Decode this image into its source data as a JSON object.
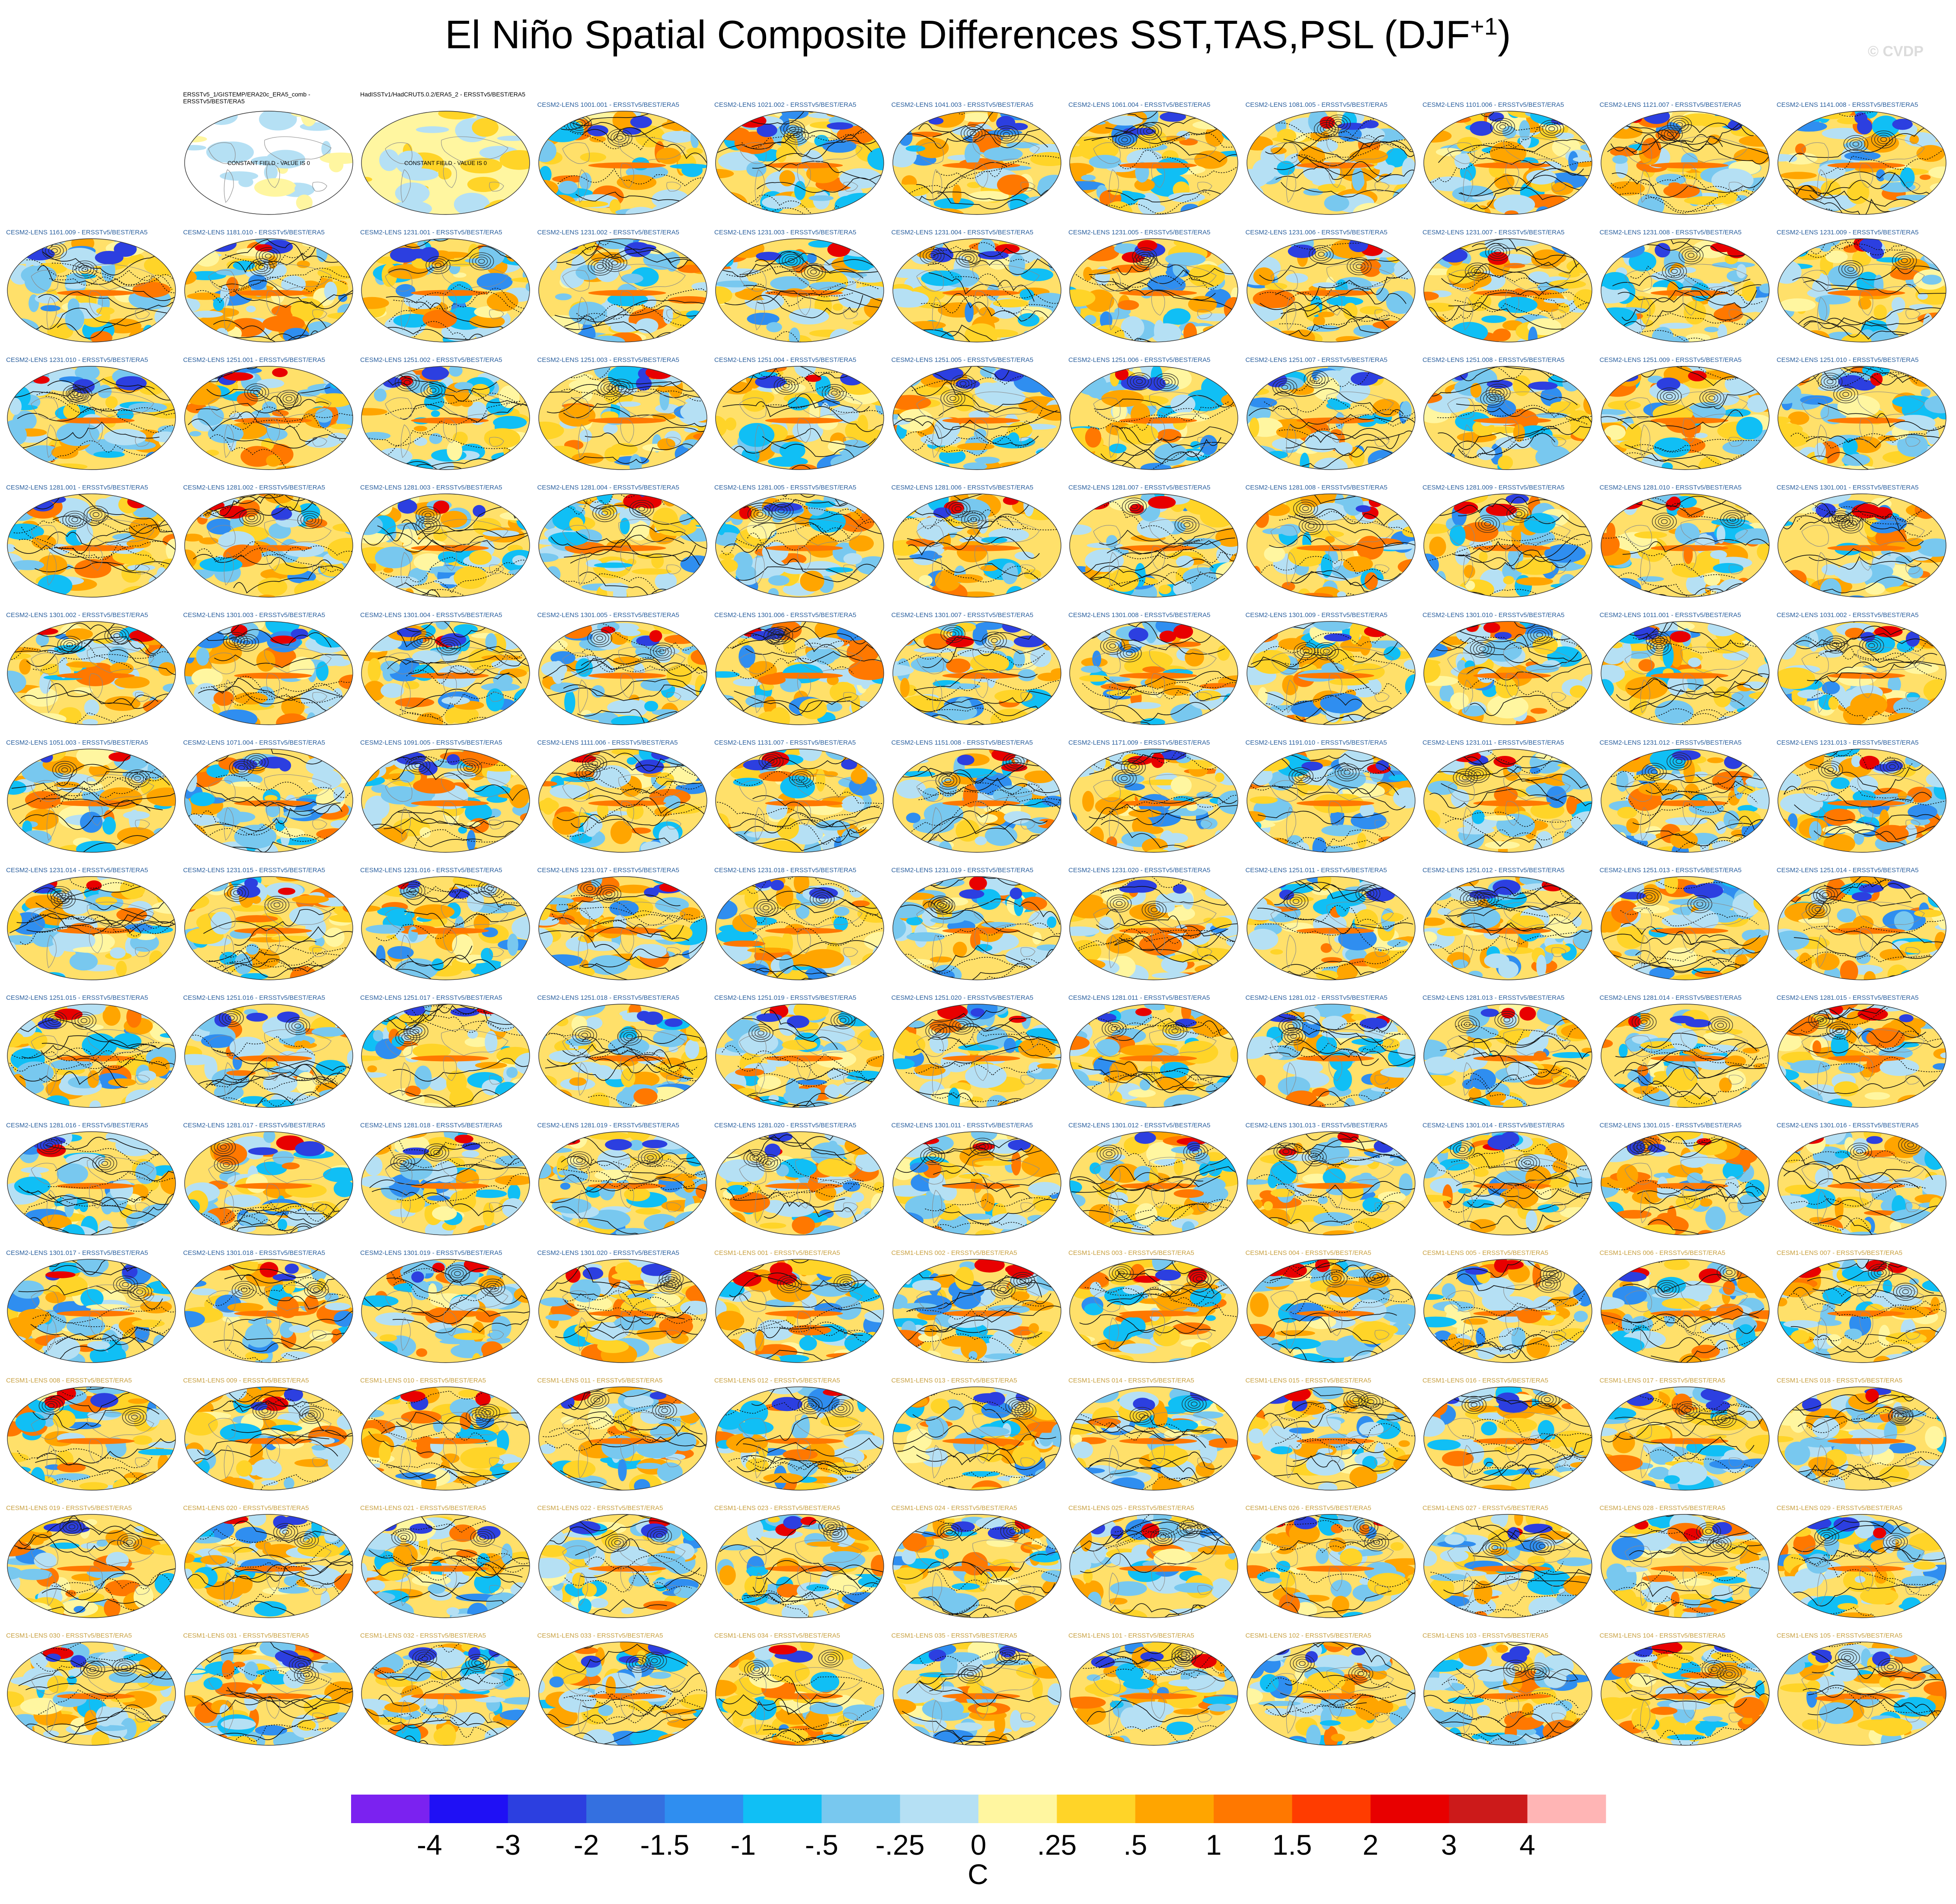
{
  "title": "El Niño Spatial Composite Differences SST,TAS,PSL (DJF",
  "title_sup": "+1",
  "title_close": ")",
  "watermark": "© CVDP",
  "panel_rows": [
    [
      "",
      "ERSSTv5_1/GISTEMP/ERA20c_ERA5_comb - ERSSTv5/BEST/ERA5",
      "HadISSTv1/HadCRUT5.0.2/ERA5_2 - ERSSTv5/BEST/ERA5",
      "CESM2-LENS 1001.001 - ERSSTv5/BEST/ERA5",
      "CESM2-LENS 1021.002 - ERSSTv5/BEST/ERA5",
      "CESM2-LENS 1041.003 - ERSSTv5/BEST/ERA5",
      "CESM2-LENS 1061.004 - ERSSTv5/BEST/ERA5",
      "CESM2-LENS 1081.005 - ERSSTv5/BEST/ERA5",
      "CESM2-LENS 1101.006 - ERSSTv5/BEST/ERA5",
      "CESM2-LENS 1121.007 - ERSSTv5/BEST/ERA5",
      "CESM2-LENS 1141.008 - ERSSTv5/BEST/ERA5"
    ],
    [
      "CESM2-LENS 1161.009 - ERSSTv5/BEST/ERA5",
      "CESM2-LENS 1181.010 - ERSSTv5/BEST/ERA5",
      "CESM2-LENS 1231.001 - ERSSTv5/BEST/ERA5",
      "CESM2-LENS 1231.002 - ERSSTv5/BEST/ERA5",
      "CESM2-LENS 1231.003 - ERSSTv5/BEST/ERA5",
      "CESM2-LENS 1231.004 - ERSSTv5/BEST/ERA5",
      "CESM2-LENS 1231.005 - ERSSTv5/BEST/ERA5",
      "CESM2-LENS 1231.006 - ERSSTv5/BEST/ERA5",
      "CESM2-LENS 1231.007 - ERSSTv5/BEST/ERA5",
      "CESM2-LENS 1231.008 - ERSSTv5/BEST/ERA5",
      "CESM2-LENS 1231.009 - ERSSTv5/BEST/ERA5"
    ],
    [
      "CESM2-LENS 1231.010 - ERSSTv5/BEST/ERA5",
      "CESM2-LENS 1251.001 - ERSSTv5/BEST/ERA5",
      "CESM2-LENS 1251.002 - ERSSTv5/BEST/ERA5",
      "CESM2-LENS 1251.003 - ERSSTv5/BEST/ERA5",
      "CESM2-LENS 1251.004 - ERSSTv5/BEST/ERA5",
      "CESM2-LENS 1251.005 - ERSSTv5/BEST/ERA5",
      "CESM2-LENS 1251.006 - ERSSTv5/BEST/ERA5",
      "CESM2-LENS 1251.007 - ERSSTv5/BEST/ERA5",
      "CESM2-LENS 1251.008 - ERSSTv5/BEST/ERA5",
      "CESM2-LENS 1251.009 - ERSSTv5/BEST/ERA5",
      "CESM2-LENS 1251.010 - ERSSTv5/BEST/ERA5"
    ],
    [
      "CESM2-LENS 1281.001 - ERSSTv5/BEST/ERA5",
      "CESM2-LENS 1281.002 - ERSSTv5/BEST/ERA5",
      "CESM2-LENS 1281.003 - ERSSTv5/BEST/ERA5",
      "CESM2-LENS 1281.004 - ERSSTv5/BEST/ERA5",
      "CESM2-LENS 1281.005 - ERSSTv5/BEST/ERA5",
      "CESM2-LENS 1281.006 - ERSSTv5/BEST/ERA5",
      "CESM2-LENS 1281.007 - ERSSTv5/BEST/ERA5",
      "CESM2-LENS 1281.008 - ERSSTv5/BEST/ERA5",
      "CESM2-LENS 1281.009 - ERSSTv5/BEST/ERA5",
      "CESM2-LENS 1281.010 - ERSSTv5/BEST/ERA5",
      "CESM2-LENS 1301.001 - ERSSTv5/BEST/ERA5"
    ],
    [
      "CESM2-LENS 1301.002 - ERSSTv5/BEST/ERA5",
      "CESM2-LENS 1301.003 - ERSSTv5/BEST/ERA5",
      "CESM2-LENS 1301.004 - ERSSTv5/BEST/ERA5",
      "CESM2-LENS 1301.005 - ERSSTv5/BEST/ERA5",
      "CESM2-LENS 1301.006 - ERSSTv5/BEST/ERA5",
      "CESM2-LENS 1301.007 - ERSSTv5/BEST/ERA5",
      "CESM2-LENS 1301.008 - ERSSTv5/BEST/ERA5",
      "CESM2-LENS 1301.009 - ERSSTv5/BEST/ERA5",
      "CESM2-LENS 1301.010 - ERSSTv5/BEST/ERA5",
      "CESM2-LENS 1011.001 - ERSSTv5/BEST/ERA5",
      "CESM2-LENS 1031.002 - ERSSTv5/BEST/ERA5"
    ],
    [
      "CESM2-LENS 1051.003 - ERSSTv5/BEST/ERA5",
      "CESM2-LENS 1071.004 - ERSSTv5/BEST/ERA5",
      "CESM2-LENS 1091.005 - ERSSTv5/BEST/ERA5",
      "CESM2-LENS 1111.006 - ERSSTv5/BEST/ERA5",
      "CESM2-LENS 1131.007 - ERSSTv5/BEST/ERA5",
      "CESM2-LENS 1151.008 - ERSSTv5/BEST/ERA5",
      "CESM2-LENS 1171.009 - ERSSTv5/BEST/ERA5",
      "CESM2-LENS 1191.010 - ERSSTv5/BEST/ERA5",
      "CESM2-LENS 1231.011 - ERSSTv5/BEST/ERA5",
      "CESM2-LENS 1231.012 - ERSSTv5/BEST/ERA5",
      "CESM2-LENS 1231.013 - ERSSTv5/BEST/ERA5"
    ],
    [
      "CESM2-LENS 1231.014 - ERSSTv5/BEST/ERA5",
      "CESM2-LENS 1231.015 - ERSSTv5/BEST/ERA5",
      "CESM2-LENS 1231.016 - ERSSTv5/BEST/ERA5",
      "CESM2-LENS 1231.017 - ERSSTv5/BEST/ERA5",
      "CESM2-LENS 1231.018 - ERSSTv5/BEST/ERA5",
      "CESM2-LENS 1231.019 - ERSSTv5/BEST/ERA5",
      "CESM2-LENS 1231.020 - ERSSTv5/BEST/ERA5",
      "CESM2-LENS 1251.011 - ERSSTv5/BEST/ERA5",
      "CESM2-LENS 1251.012 - ERSSTv5/BEST/ERA5",
      "CESM2-LENS 1251.013 - ERSSTv5/BEST/ERA5",
      "CESM2-LENS 1251.014 - ERSSTv5/BEST/ERA5"
    ],
    [
      "CESM2-LENS 1251.015 - ERSSTv5/BEST/ERA5",
      "CESM2-LENS 1251.016 - ERSSTv5/BEST/ERA5",
      "CESM2-LENS 1251.017 - ERSSTv5/BEST/ERA5",
      "CESM2-LENS 1251.018 - ERSSTv5/BEST/ERA5",
      "CESM2-LENS 1251.019 - ERSSTv5/BEST/ERA5",
      "CESM2-LENS 1251.020 - ERSSTv5/BEST/ERA5",
      "CESM2-LENS 1281.011 - ERSSTv5/BEST/ERA5",
      "CESM2-LENS 1281.012 - ERSSTv5/BEST/ERA5",
      "CESM2-LENS 1281.013 - ERSSTv5/BEST/ERA5",
      "CESM2-LENS 1281.014 - ERSSTv5/BEST/ERA5",
      "CESM2-LENS 1281.015 - ERSSTv5/BEST/ERA5"
    ],
    [
      "CESM2-LENS 1281.016 - ERSSTv5/BEST/ERA5",
      "CESM2-LENS 1281.017 - ERSSTv5/BEST/ERA5",
      "CESM2-LENS 1281.018 - ERSSTv5/BEST/ERA5",
      "CESM2-LENS 1281.019 - ERSSTv5/BEST/ERA5",
      "CESM2-LENS 1281.020 - ERSSTv5/BEST/ERA5",
      "CESM2-LENS 1301.011 - ERSSTv5/BEST/ERA5",
      "CESM2-LENS 1301.012 - ERSSTv5/BEST/ERA5",
      "CESM2-LENS 1301.013 - ERSSTv5/BEST/ERA5",
      "CESM2-LENS 1301.014 - ERSSTv5/BEST/ERA5",
      "CESM2-LENS 1301.015 - ERSSTv5/BEST/ERA5",
      "CESM2-LENS 1301.016 - ERSSTv5/BEST/ERA5"
    ],
    [
      "CESM2-LENS 1301.017 - ERSSTv5/BEST/ERA5",
      "CESM2-LENS 1301.018 - ERSSTv5/BEST/ERA5",
      "CESM2-LENS 1301.019 - ERSSTv5/BEST/ERA5",
      "CESM2-LENS 1301.020 - ERSSTv5/BEST/ERA5",
      "CESM1-LENS 001 - ERSSTv5/BEST/ERA5",
      "CESM1-LENS 002 - ERSSTv5/BEST/ERA5",
      "CESM1-LENS 003 - ERSSTv5/BEST/ERA5",
      "CESM1-LENS 004 - ERSSTv5/BEST/ERA5",
      "CESM1-LENS 005 - ERSSTv5/BEST/ERA5",
      "CESM1-LENS 006 - ERSSTv5/BEST/ERA5",
      "CESM1-LENS 007 - ERSSTv5/BEST/ERA5"
    ],
    [
      "CESM1-LENS 008 - ERSSTv5/BEST/ERA5",
      "CESM1-LENS 009 - ERSSTv5/BEST/ERA5",
      "CESM1-LENS 010 - ERSSTv5/BEST/ERA5",
      "CESM1-LENS 011 - ERSSTv5/BEST/ERA5",
      "CESM1-LENS 012 - ERSSTv5/BEST/ERA5",
      "CESM1-LENS 013 - ERSSTv5/BEST/ERA5",
      "CESM1-LENS 014 - ERSSTv5/BEST/ERA5",
      "CESM1-LENS 015 - ERSSTv5/BEST/ERA5",
      "CESM1-LENS 016 - ERSSTv5/BEST/ERA5",
      "CESM1-LENS 017 - ERSSTv5/BEST/ERA5",
      "CESM1-LENS 018 - ERSSTv5/BEST/ERA5"
    ],
    [
      "CESM1-LENS 019 - ERSSTv5/BEST/ERA5",
      "CESM1-LENS 020 - ERSSTv5/BEST/ERA5",
      "CESM1-LENS 021 - ERSSTv5/BEST/ERA5",
      "CESM1-LENS 022 - ERSSTv5/BEST/ERA5",
      "CESM1-LENS 023 - ERSSTv5/BEST/ERA5",
      "CESM1-LENS 024 - ERSSTv5/BEST/ERA5",
      "CESM1-LENS 025 - ERSSTv5/BEST/ERA5",
      "CESM1-LENS 026 - ERSSTv5/BEST/ERA5",
      "CESM1-LENS 027 - ERSSTv5/BEST/ERA5",
      "CESM1-LENS 028 - ERSSTv5/BEST/ERA5",
      "CESM1-LENS 029 - ERSSTv5/BEST/ERA5"
    ],
    [
      "CESM1-LENS 030 - ERSSTv5/BEST/ERA5",
      "CESM1-LENS 031 - ERSSTv5/BEST/ERA5",
      "CESM1-LENS 032 - ERSSTv5/BEST/ERA5",
      "CESM1-LENS 033 - ERSSTv5/BEST/ERA5",
      "CESM1-LENS 034 - ERSSTv5/BEST/ERA5",
      "CESM1-LENS 035 - ERSSTv5/BEST/ERA5",
      "CESM1-LENS 101 - ERSSTv5/BEST/ERA5",
      "CESM1-LENS 102 - ERSSTv5/BEST/ERA5",
      "CESM1-LENS 103 - ERSSTv5/BEST/ERA5",
      "CESM1-LENS 104 - ERSSTv5/BEST/ERA5",
      "CESM1-LENS 105 - ERSSTv5/BEST/ERA5"
    ]
  ],
  "constant_field_text": "CONSTANT FIELD - VALUE IS 0",
  "chart_data": {
    "type": "heatmap",
    "title": "El Niño Spatial Composite Differences SST,TAS,PSL (DJF+1)",
    "variables": [
      "SST",
      "TAS",
      "PSL"
    ],
    "season": "DJF+1",
    "reference": "ERSSTv5/BEST/ERA5",
    "grid_rows": 13,
    "grid_cols": 11,
    "colorbar": {
      "unit": "C",
      "tick_labels": [
        "-4",
        "-3",
        "-2",
        "-1.5",
        "-1",
        "-.5",
        "-.25",
        "0",
        ".25",
        ".5",
        "1",
        "1.5",
        "2",
        "3",
        "4"
      ],
      "levels": [
        -4,
        -3,
        -2,
        -1.5,
        -1,
        -0.5,
        -0.25,
        0,
        0.25,
        0.5,
        1,
        1.5,
        2,
        3,
        4
      ],
      "colors": [
        "#7b22f0",
        "#1f10f5",
        "#2c3fe0",
        "#3470e0",
        "#2f8ef0",
        "#10bff5",
        "#78c8ef",
        "#b5e0f4",
        "#fff6a0",
        "#ffd428",
        "#ffa500",
        "#ff7800",
        "#ff3c00",
        "#e80000",
        "#cc1a1a",
        "#ffb5b5"
      ]
    }
  }
}
